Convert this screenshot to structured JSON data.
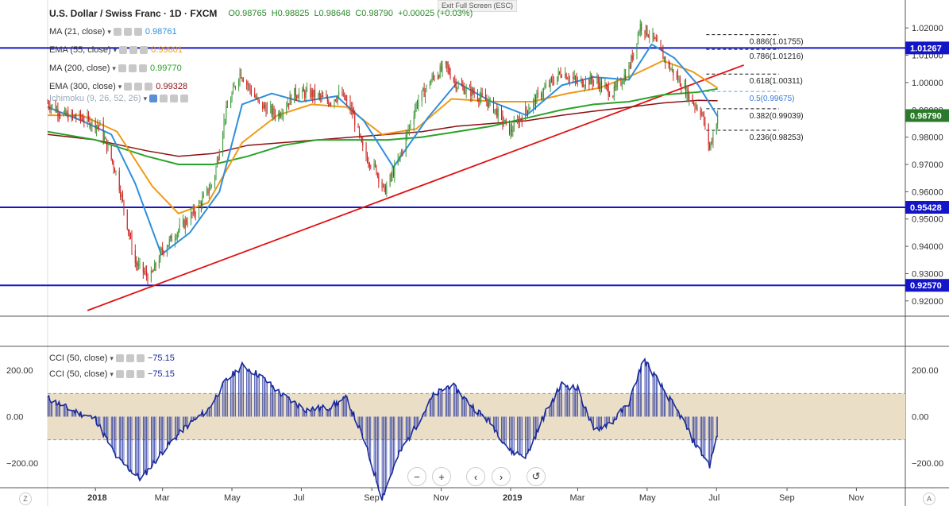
{
  "header": {
    "symbol": "U.S. Dollar / Swiss Franc · 1D · FXCM",
    "open": "O0.98765",
    "high": "H0.98825",
    "low": "L0.98648",
    "close": "C0.98790",
    "change": "+0.00025 (+0.03%)",
    "exit_label": "Exit Full Screen (ESC)"
  },
  "indicators": [
    {
      "label": "MA (21, close)",
      "value": "0.98761",
      "color": "#2f8fdc"
    },
    {
      "label": "EMA (55, close)",
      "value": "0.99801",
      "color": "#f09a17"
    },
    {
      "label": "MA (200, close)",
      "value": "0.99770",
      "color": "#2aa32a"
    },
    {
      "label": "EMA (300, close)",
      "value": "0.99328",
      "color": "#8b1010"
    },
    {
      "label": "Ichimoku (9, 26, 52, 26)",
      "value": "",
      "color": "#9ab"
    }
  ],
  "cci_legends": [
    {
      "label": "CCI (50, close)",
      "value": "−75.15"
    },
    {
      "label": "CCI (50, close)",
      "value": "−75.15"
    }
  ],
  "controls": {
    "minus": "−",
    "plus": "+",
    "left": "‹",
    "right": "›",
    "reset": "↺",
    "z_left": "Z",
    "z_right": "A"
  },
  "colors": {
    "up": "#3d9a3d",
    "down": "#d02020",
    "ma21": "#2f8fdc",
    "ema55": "#f09a17",
    "ma200": "#2aa32a",
    "ema300": "#8b1010",
    "hline": "#1515c8",
    "trend": "#e01010",
    "cci": "#1a2a9c",
    "band": "#eadfc6"
  },
  "chart_data": [
    {
      "type": "candlestick",
      "title": "U.S. Dollar / Swiss Franc · 1D · FXCM",
      "x_ticks": [
        "2018",
        "Mar",
        "May",
        "Jul",
        "Sep",
        "Nov",
        "2019",
        "Mar",
        "May",
        "Jul",
        "Sep",
        "Nov"
      ],
      "ylim": [
        0.915,
        1.025
      ],
      "y_ticks": [
        "1.02000",
        "1.01000",
        "1.00000",
        "0.99000",
        "0.98000",
        "0.97000",
        "0.96000",
        "0.95000",
        "0.94000",
        "0.93000",
        "0.92000"
      ],
      "price_badges": [
        {
          "value": "1.01267",
          "color": "#1515c8"
        },
        {
          "value": "0.98790",
          "color": "#2b7a2b"
        },
        {
          "value": "0.95428",
          "color": "#1515c8"
        },
        {
          "value": "0.92570",
          "color": "#1515c8"
        }
      ],
      "horizontal_lines": [
        1.01267,
        0.95428,
        0.9257
      ],
      "trendline": {
        "from": [
          "2017-12-25",
          0.9165
        ],
        "to": [
          "2019-07-25",
          1.0064
        ]
      },
      "fibonacci": [
        {
          "label": "0.886(1.01755)",
          "value": 1.01755
        },
        {
          "label": "0.786(1.01216)",
          "value": 1.01216
        },
        {
          "label": "0.618(1.00311)",
          "value": 1.00311
        },
        {
          "label": "0.5(0.99675)",
          "value": 0.99675
        },
        {
          "label": "0.382(0.99039)",
          "value": 0.99039
        },
        {
          "label": "0.236(0.98253)",
          "value": 0.98253
        }
      ],
      "price_path": [
        [
          "2017-11-20",
          0.9925
        ],
        [
          "2017-12-05",
          0.988
        ],
        [
          "2017-12-20",
          0.987
        ],
        [
          "2018-01-05",
          0.984
        ],
        [
          "2018-01-20",
          0.966
        ],
        [
          "2018-02-05",
          0.934
        ],
        [
          "2018-02-18",
          0.928
        ],
        [
          "2018-02-28",
          0.938
        ],
        [
          "2018-03-15",
          0.946
        ],
        [
          "2018-04-01",
          0.954
        ],
        [
          "2018-04-15",
          0.964
        ],
        [
          "2018-04-25",
          0.988
        ],
        [
          "2018-05-08",
          1.004
        ],
        [
          "2018-05-25",
          0.992
        ],
        [
          "2018-06-10",
          0.988
        ],
        [
          "2018-06-25",
          0.996
        ],
        [
          "2018-07-10",
          0.996
        ],
        [
          "2018-07-25",
          0.993
        ],
        [
          "2018-08-05",
          0.996
        ],
        [
          "2018-08-15",
          0.989
        ],
        [
          "2018-08-25",
          0.974
        ],
        [
          "2018-09-05",
          0.968
        ],
        [
          "2018-09-12",
          0.96
        ],
        [
          "2018-09-25",
          0.972
        ],
        [
          "2018-10-10",
          0.992
        ],
        [
          "2018-10-25",
          1.002
        ],
        [
          "2018-11-05",
          1.006
        ],
        [
          "2018-11-15",
          0.999
        ],
        [
          "2018-11-30",
          0.996
        ],
        [
          "2018-12-15",
          0.992
        ],
        [
          "2019-01-01",
          0.982
        ],
        [
          "2019-01-15",
          0.99
        ],
        [
          "2019-02-01",
          0.998
        ],
        [
          "2019-02-15",
          1.004
        ],
        [
          "2019-03-01",
          1.0
        ],
        [
          "2019-03-15",
          1.001
        ],
        [
          "2019-04-01",
          0.996
        ],
        [
          "2019-04-15",
          1.005
        ],
        [
          "2019-04-25",
          1.021
        ],
        [
          "2019-05-05",
          1.017
        ],
        [
          "2019-05-20",
          1.006
        ],
        [
          "2019-06-01",
          0.999
        ],
        [
          "2019-06-10",
          0.993
        ],
        [
          "2019-06-18",
          0.989
        ],
        [
          "2019-06-25",
          0.976
        ],
        [
          "2019-07-02",
          0.9879
        ]
      ],
      "ma21": [
        [
          "2017-11-20",
          0.991
        ],
        [
          "2017-12-20",
          0.986
        ],
        [
          "2018-01-15",
          0.981
        ],
        [
          "2018-02-05",
          0.963
        ],
        [
          "2018-02-28",
          0.937
        ],
        [
          "2018-03-25",
          0.945
        ],
        [
          "2018-04-20",
          0.96
        ],
        [
          "2018-05-10",
          0.992
        ],
        [
          "2018-06-05",
          0.996
        ],
        [
          "2018-07-01",
          0.993
        ],
        [
          "2018-08-01",
          0.995
        ],
        [
          "2018-08-25",
          0.986
        ],
        [
          "2018-09-20",
          0.969
        ],
        [
          "2018-10-20",
          0.987
        ],
        [
          "2018-11-15",
          1.0
        ],
        [
          "2018-12-15",
          0.993
        ],
        [
          "2019-01-15",
          0.988
        ],
        [
          "2019-02-15",
          0.999
        ],
        [
          "2019-03-15",
          1.002
        ],
        [
          "2019-04-15",
          1.001
        ],
        [
          "2019-05-05",
          1.014
        ],
        [
          "2019-05-25",
          1.009
        ],
        [
          "2019-06-15",
          0.999
        ],
        [
          "2019-07-02",
          0.9876
        ]
      ],
      "ema55": [
        [
          "2017-11-20",
          0.988
        ],
        [
          "2017-12-20",
          0.988
        ],
        [
          "2018-01-20",
          0.982
        ],
        [
          "2018-02-20",
          0.962
        ],
        [
          "2018-03-15",
          0.952
        ],
        [
          "2018-04-10",
          0.956
        ],
        [
          "2018-05-10",
          0.978
        ],
        [
          "2018-06-10",
          0.988
        ],
        [
          "2018-07-10",
          0.992
        ],
        [
          "2018-08-10",
          0.991
        ],
        [
          "2018-09-10",
          0.981
        ],
        [
          "2018-10-10",
          0.983
        ],
        [
          "2018-11-10",
          0.994
        ],
        [
          "2018-12-20",
          0.993
        ],
        [
          "2019-01-20",
          0.993
        ],
        [
          "2019-02-20",
          0.996
        ],
        [
          "2019-03-20",
          0.998
        ],
        [
          "2019-04-20",
          1.003
        ],
        [
          "2019-05-15",
          1.008
        ],
        [
          "2019-06-10",
          1.004
        ],
        [
          "2019-07-02",
          0.998
        ]
      ],
      "ma200": [
        [
          "2017-11-20",
          0.982
        ],
        [
          "2018-01-01",
          0.979
        ],
        [
          "2018-02-15",
          0.973
        ],
        [
          "2018-03-15",
          0.97
        ],
        [
          "2018-04-15",
          0.97
        ],
        [
          "2018-05-15",
          0.973
        ],
        [
          "2018-06-15",
          0.977
        ],
        [
          "2018-07-15",
          0.979
        ],
        [
          "2018-08-15",
          0.979
        ],
        [
          "2018-09-15",
          0.979
        ],
        [
          "2018-10-15",
          0.98
        ],
        [
          "2018-11-15",
          0.982
        ],
        [
          "2018-12-15",
          0.984
        ],
        [
          "2019-01-15",
          0.987
        ],
        [
          "2019-02-15",
          0.99
        ],
        [
          "2019-03-15",
          0.992
        ],
        [
          "2019-04-15",
          0.993
        ],
        [
          "2019-05-15",
          0.9955
        ],
        [
          "2019-06-15",
          0.9965
        ],
        [
          "2019-07-02",
          0.9977
        ]
      ],
      "ema300": [
        [
          "2017-11-20",
          0.981
        ],
        [
          "2018-01-01",
          0.979
        ],
        [
          "2018-02-15",
          0.975
        ],
        [
          "2018-03-15",
          0.973
        ],
        [
          "2018-04-15",
          0.974
        ],
        [
          "2018-05-15",
          0.977
        ],
        [
          "2018-06-15",
          0.978
        ],
        [
          "2018-07-15",
          0.979
        ],
        [
          "2018-08-15",
          0.98
        ],
        [
          "2018-09-15",
          0.981
        ],
        [
          "2018-10-15",
          0.982
        ],
        [
          "2018-11-15",
          0.984
        ],
        [
          "2018-12-15",
          0.985
        ],
        [
          "2019-01-15",
          0.986
        ],
        [
          "2019-02-15",
          0.988
        ],
        [
          "2019-03-15",
          0.9895
        ],
        [
          "2019-04-15",
          0.991
        ],
        [
          "2019-05-15",
          0.9925
        ],
        [
          "2019-06-15",
          0.9935
        ],
        [
          "2019-07-02",
          0.9933
        ]
      ]
    },
    {
      "type": "area",
      "title": "CCI (50, close)",
      "ylim": [
        -300,
        300
      ],
      "y_ticks": [
        "200.00",
        "0.00",
        "−200.00"
      ],
      "band": [
        -100,
        100
      ],
      "series": [
        {
          "name": "CCI (50, close)",
          "values": [
            [
              "2017-11-20",
              80
            ],
            [
              "2017-12-10",
              30
            ],
            [
              "2018-01-01",
              -10
            ],
            [
              "2018-01-20",
              -180
            ],
            [
              "2018-02-10",
              -270
            ],
            [
              "2018-03-01",
              -150
            ],
            [
              "2018-03-20",
              -50
            ],
            [
              "2018-04-10",
              30
            ],
            [
              "2018-04-25",
              150
            ],
            [
              "2018-05-10",
              220
            ],
            [
              "2018-05-25",
              180
            ],
            [
              "2018-06-15",
              90
            ],
            [
              "2018-07-05",
              30
            ],
            [
              "2018-07-25",
              40
            ],
            [
              "2018-08-10",
              80
            ],
            [
              "2018-08-25",
              -100
            ],
            [
              "2018-09-10",
              -350
            ],
            [
              "2018-09-25",
              -160
            ],
            [
              "2018-10-10",
              -40
            ],
            [
              "2018-10-25",
              90
            ],
            [
              "2018-11-10",
              140
            ],
            [
              "2018-11-25",
              60
            ],
            [
              "2018-12-15",
              -30
            ],
            [
              "2019-01-01",
              -150
            ],
            [
              "2019-01-15",
              -170
            ],
            [
              "2019-02-01",
              20
            ],
            [
              "2019-02-15",
              140
            ],
            [
              "2019-03-01",
              120
            ],
            [
              "2019-03-15",
              -60
            ],
            [
              "2019-04-01",
              -20
            ],
            [
              "2019-04-15",
              60
            ],
            [
              "2019-04-28",
              250
            ],
            [
              "2019-05-15",
              120
            ],
            [
              "2019-06-01",
              -10
            ],
            [
              "2019-06-10",
              -100
            ],
            [
              "2019-06-25",
              -210
            ],
            [
              "2019-07-02",
              -75
            ]
          ]
        }
      ]
    }
  ]
}
